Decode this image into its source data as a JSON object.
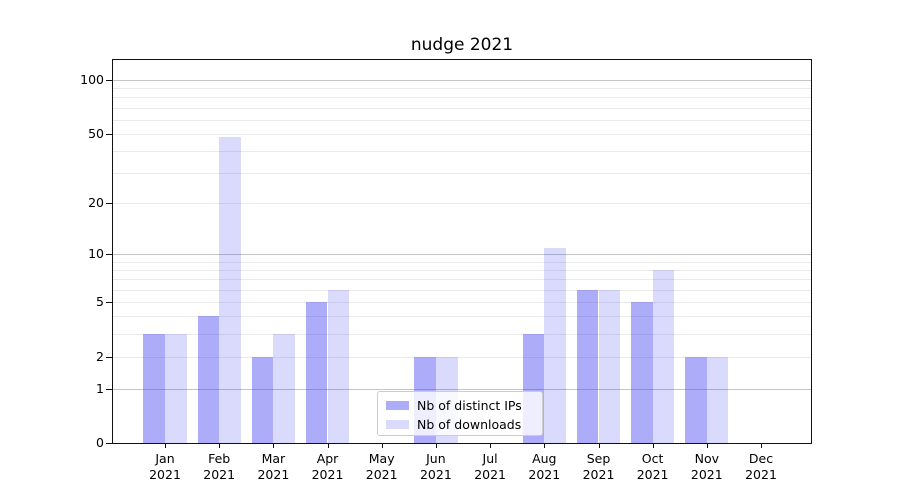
{
  "title": "nudge 2021",
  "colors": {
    "axis": "#111111",
    "grid_major": "#c4c4c4",
    "grid_minor": "#eaeaea",
    "legend_border": "#cccccc",
    "bar_distinct_ips": "rgba(70,70,240,0.45)",
    "bar_downloads": "rgba(70,70,240,0.20)"
  },
  "chart_data": {
    "type": "bar",
    "title": "nudge 2021",
    "xlabel": "",
    "ylabel": "",
    "yscale": "log1p",
    "ylim": [
      0,
      128
    ],
    "yticks": [
      0,
      1,
      2,
      5,
      10,
      20,
      50,
      100
    ],
    "grid_major": [
      1,
      10,
      100
    ],
    "grid_minor": [
      2,
      3,
      4,
      5,
      6,
      7,
      8,
      9,
      20,
      30,
      40,
      50,
      60,
      70,
      80,
      90
    ],
    "legend_position": "lower center",
    "categories": [
      {
        "label": "Jan",
        "year": "2021"
      },
      {
        "label": "Feb",
        "year": "2021"
      },
      {
        "label": "Mar",
        "year": "2021"
      },
      {
        "label": "Apr",
        "year": "2021"
      },
      {
        "label": "May",
        "year": "2021"
      },
      {
        "label": "Jun",
        "year": "2021"
      },
      {
        "label": "Jul",
        "year": "2021"
      },
      {
        "label": "Aug",
        "year": "2021"
      },
      {
        "label": "Sep",
        "year": "2021"
      },
      {
        "label": "Oct",
        "year": "2021"
      },
      {
        "label": "Nov",
        "year": "2021"
      },
      {
        "label": "Dec",
        "year": "2021"
      }
    ],
    "series": [
      {
        "name": "Nb of distinct IPs",
        "color": "rgba(70,70,240,0.45)",
        "values": [
          3,
          4,
          2,
          5,
          0,
          2,
          0,
          3,
          6,
          5,
          2,
          0
        ]
      },
      {
        "name": "Nb of downloads",
        "color": "rgba(70,70,240,0.20)",
        "values": [
          3,
          48,
          3,
          6,
          0,
          2,
          0,
          11,
          6,
          8,
          2,
          0
        ]
      }
    ]
  }
}
